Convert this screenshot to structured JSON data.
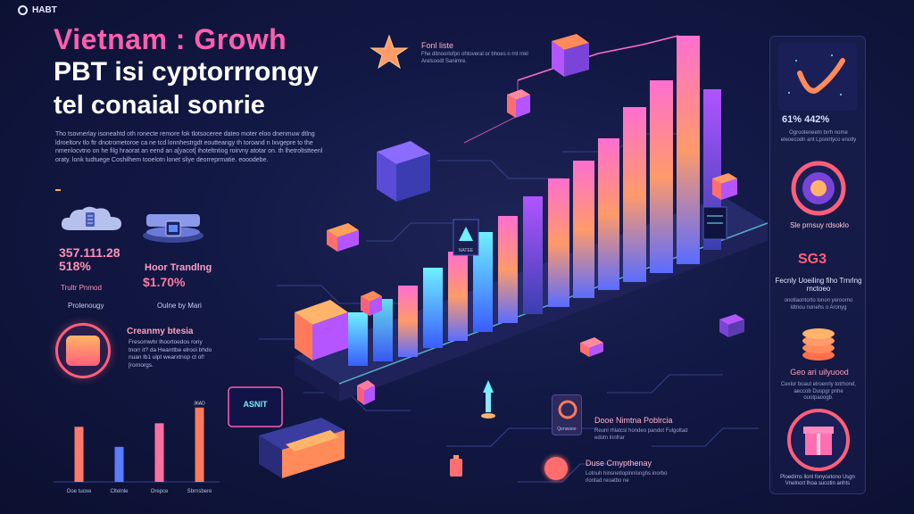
{
  "logo": {
    "text": "HABT"
  },
  "titles": {
    "line1": "Vietnam : Growh",
    "line2": "PBT isi cyptorrrongy",
    "line3": "tel conaial sonrie"
  },
  "intro_text": "Tho tsovnerlay isoneahtd oth ronecte remore fok tlotsoceree dateo moter eloo dnenmuw dtlng ldroeltorv tlo ftr dnotrometoroe ca ne tcd lonnhestrgdt eoutteangy th toroand n Ixvgepre to the nmenlocvtno on he filg hraorat an eend an a[yacot[ ihoteltntiog roirvny atotar on. th lhetroltstteenl oraty. lonk tudtuege Coshilhem tooelotn lonet sliye deorreprmatie. eooodebe.",
  "stats": {
    "a_value": "357.111.28",
    "a_pct": "518%",
    "a_label": "Trultr Pnmod",
    "a_foot": "Prolenougy",
    "b_title": "Hoor Trandlng",
    "b_value": "$1.70%",
    "b_foot": "Oulne by Mari"
  },
  "feature": {
    "title": "Creanmy btesia",
    "body": "Fresomwhr lhoortoedos roriy tnorr it? da Heanttbe elrooi bhdo nuan lb1 ulpt wearxtnop ct of! [rornorgs."
  },
  "chart_data": {
    "type": "bar",
    "categories": [
      "Ooe tuoxe",
      "Cltelnle",
      "Orepce",
      "Sbrnsbere"
    ],
    "values": [
      63,
      40,
      67,
      85
    ],
    "bar_colors": [
      "#ff7a6a",
      "#5a7cff",
      "#ff6fa0",
      "#ff7a5a"
    ],
    "label_on_last": "36AD",
    "ylim": [
      0,
      100
    ],
    "title": "",
    "xlabel": "",
    "ylabel": ""
  },
  "right_panel": {
    "stat": "61% 442%",
    "stat_sub": "Ogrooteneetn brrh nome eleoecodn ant Lpsnntyco enotly",
    "label1": "Sle prnsuy rdsoklo",
    "big": "SG3",
    "label2": "Fecnly Uoeiling fiho Trnrlng rnctoeo",
    "label2_sub": "onotlaontorto lonon yeroorno ldtnou nonehs o Aronyg",
    "label3": "Geo ari uilyuood",
    "label3_sub": "Cexlor boaut elroenrly totrhond, aeccob Duspgr pnhe ouotpaoogb.",
    "foot": "Ploedims llonl fonycetono Usgn Vnelnort lhoa sucotin anhts"
  },
  "scene": {
    "feature_label": "Fonl liste",
    "feature_sub": "Fhe ditnoorlofpn ohtoveral or bhoes n rnt rnkl Arelsoodt Sanimre.",
    "tag_neon": "ASNIT",
    "cube_label": "NATEE",
    "bottom1_title": "Dooe Nimtna Poblrcia",
    "bottom1_sub": "Reunl rhlatcsl hondeo pandot Fulgoltad edotn lnnfrar",
    "bottom2_title": "Duse Cmypthenay",
    "bottom2_sub": "Lotnuh hinsnetlopinnlonghs inorbo rlontad reoatbo ne",
    "chip_label": "Qenwoee"
  },
  "colors": {
    "accent_pink": "#ff5fb0",
    "accent_orange": "#ff9a3c",
    "background": "#121844",
    "violet": "#8a5cff"
  }
}
